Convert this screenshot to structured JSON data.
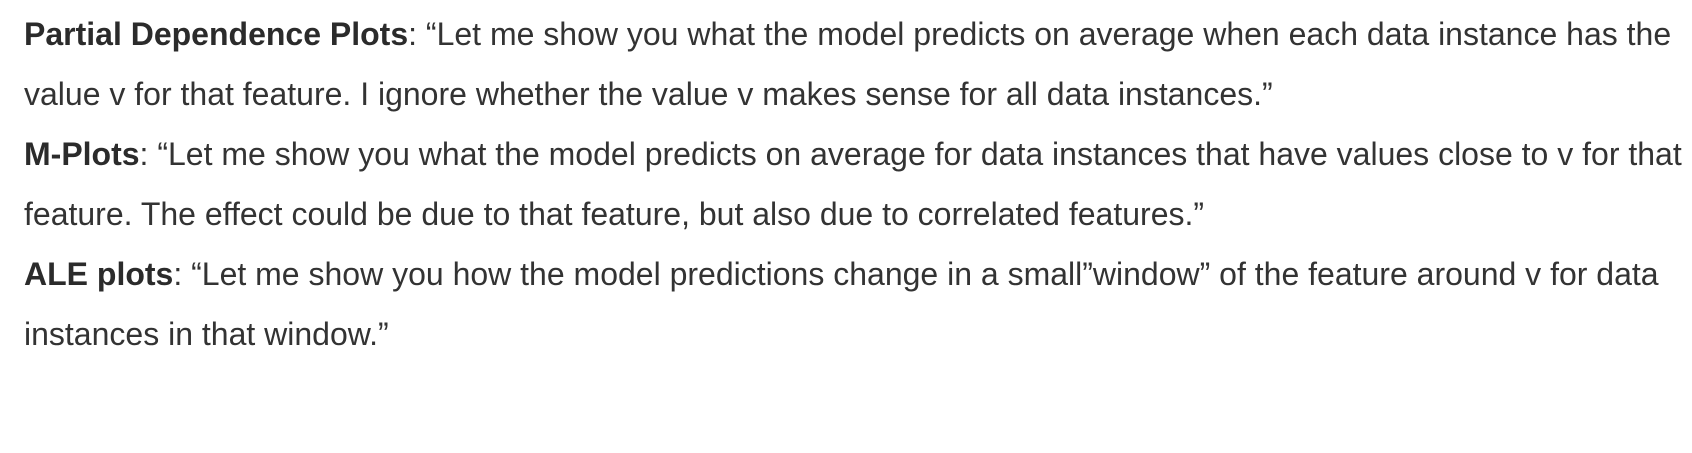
{
  "definitions": [
    {
      "term": "Partial Dependence Plots",
      "separator": ": ",
      "quote": "“Let me show you what the model predicts on average when each data instance has the value v for that feature. I ignore whether the value v makes sense for all data instances.”"
    },
    {
      "term": "M-Plots",
      "separator": ": ",
      "quote": "“Let me show you what the model predicts on average for data instances that have values close to v for that feature. The effect could be due to that feature, but also due to correlated features.”"
    },
    {
      "term": "ALE plots",
      "separator": ": ",
      "quote": "“Let me show you how the model predictions change in a small”window” of the feature around v for data instances in that window.”"
    }
  ]
}
